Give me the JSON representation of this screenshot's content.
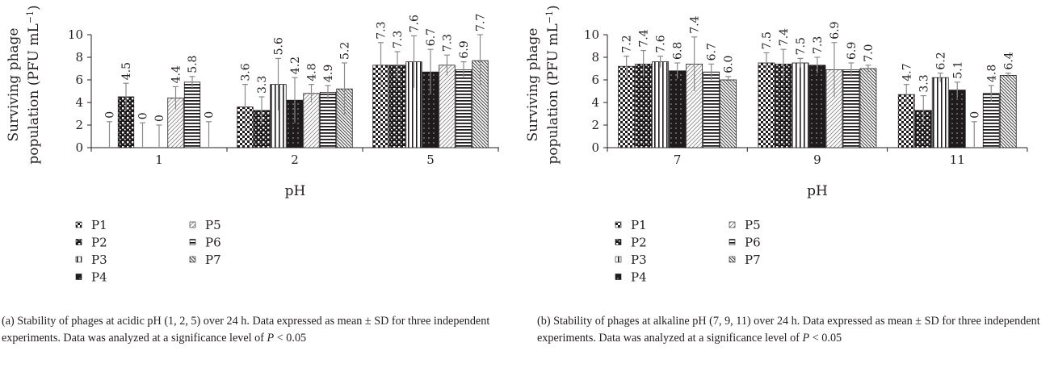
{
  "chart_data": [
    {
      "type": "bar",
      "panel": "a",
      "ylabel_line1": "Surviving phage",
      "ylabel_line2": "population (PFU mL",
      "ylabel_sup": "−1",
      "ylabel_close": ")",
      "xlabel": "pH",
      "categories": [
        "1",
        "2",
        "5"
      ],
      "ylim": [
        0,
        10
      ],
      "yticks": [
        "0",
        "2",
        "4",
        "6",
        "8",
        "10"
      ],
      "grid": false,
      "legend_placement": "bottom-left",
      "series": [
        {
          "name": "P1",
          "pattern": "checker",
          "values": [
            0,
            3.6,
            7.3
          ],
          "errors": [
            2.3,
            2.0,
            2.0
          ],
          "labels": [
            "0",
            "3.6",
            "7.3"
          ]
        },
        {
          "name": "P2",
          "pattern": "dots-white",
          "values": [
            4.5,
            3.3,
            7.3
          ],
          "errors": [
            1.2,
            1.2,
            1.2
          ],
          "labels": [
            "4.5",
            "3.3",
            "7.3"
          ]
        },
        {
          "name": "P3",
          "pattern": "vlines",
          "values": [
            0,
            5.6,
            7.6
          ],
          "errors": [
            2.2,
            2.3,
            2.3
          ],
          "labels": [
            "0",
            "5.6",
            "7.6"
          ]
        },
        {
          "name": "P4",
          "pattern": "dots-black",
          "values": [
            0,
            4.2,
            6.7
          ],
          "errors": [
            2.0,
            2.0,
            2.0
          ],
          "labels": [
            "0",
            "4.2",
            "6.7"
          ]
        },
        {
          "name": "P5",
          "pattern": "diag-light",
          "values": [
            4.4,
            4.8,
            7.3
          ],
          "errors": [
            1.0,
            0.8,
            0.9
          ],
          "labels": [
            "4.4",
            "4.8",
            "7.3"
          ]
        },
        {
          "name": "P6",
          "pattern": "hlines",
          "values": [
            5.8,
            4.9,
            6.9
          ],
          "errors": [
            0.5,
            0.6,
            0.7
          ],
          "labels": [
            "5.8",
            "4.9",
            "6.9"
          ]
        },
        {
          "name": "P7",
          "pattern": "diag-dense",
          "values": [
            0,
            5.2,
            7.7
          ],
          "errors": [
            2.3,
            2.3,
            2.3
          ],
          "labels": [
            "0",
            "5.2",
            "7.7"
          ]
        }
      ],
      "caption_prefix": "(a)  Stability of phages at acidic pH (1, 2, 5) over 24 h. Data expressed as mean ± SD for three independent experiments. Data was analyzed at a significance level of ",
      "caption_p": "P",
      "caption_suffix": " < 0.05"
    },
    {
      "type": "bar",
      "panel": "b",
      "ylabel_line1": "Surviving phage",
      "ylabel_line2": "population (PFU mL",
      "ylabel_sup": "−1",
      "ylabel_close": ")",
      "xlabel": "pH",
      "categories": [
        "7",
        "9",
        "11"
      ],
      "ylim": [
        0,
        10
      ],
      "yticks": [
        "0",
        "2",
        "4",
        "6",
        "8",
        "10"
      ],
      "grid": false,
      "legend_placement": "bottom-left",
      "series": [
        {
          "name": "P1",
          "pattern": "checker",
          "values": [
            7.2,
            7.5,
            4.7
          ],
          "errors": [
            0.9,
            0.9,
            0.9
          ],
          "labels": [
            "7.2",
            "7.5",
            "4.7"
          ]
        },
        {
          "name": "P2",
          "pattern": "dots-white",
          "values": [
            7.4,
            7.4,
            3.3
          ],
          "errors": [
            1.2,
            1.3,
            1.3
          ],
          "labels": [
            "7.4",
            "7.4",
            "3.3"
          ]
        },
        {
          "name": "P3",
          "pattern": "vlines",
          "values": [
            7.6,
            7.5,
            6.2
          ],
          "errors": [
            0.5,
            0.4,
            0.4
          ],
          "labels": [
            "7.6",
            "7.5",
            "6.2"
          ]
        },
        {
          "name": "P4",
          "pattern": "dots-black",
          "values": [
            6.8,
            7.3,
            5.1
          ],
          "errors": [
            0.7,
            0.7,
            0.7
          ],
          "labels": [
            "6.8",
            "7.3",
            "5.1"
          ]
        },
        {
          "name": "P5",
          "pattern": "diag-light",
          "values": [
            7.4,
            6.9,
            0
          ],
          "errors": [
            2.4,
            2.4,
            2.3
          ],
          "labels": [
            "7.4",
            "6.9",
            "0"
          ]
        },
        {
          "name": "P6",
          "pattern": "hlines",
          "values": [
            6.7,
            6.9,
            4.8
          ],
          "errors": [
            0.7,
            0.6,
            0.7
          ],
          "labels": [
            "6.7",
            "6.9",
            "4.8"
          ]
        },
        {
          "name": "P7",
          "pattern": "diag-dense",
          "values": [
            6.0,
            7.0,
            6.4
          ],
          "errors": [
            0.3,
            0.3,
            0.2
          ],
          "labels": [
            "6.0",
            "7.0",
            "6.4"
          ]
        }
      ],
      "caption_prefix": "(b)  Stability of phages at alkaline pH (7, 9, 11) over 24 h. Data expressed as mean ± SD for three independent experiments. Data was analyzed at a significance level of ",
      "caption_p": "P",
      "caption_suffix": " < 0.05"
    }
  ]
}
